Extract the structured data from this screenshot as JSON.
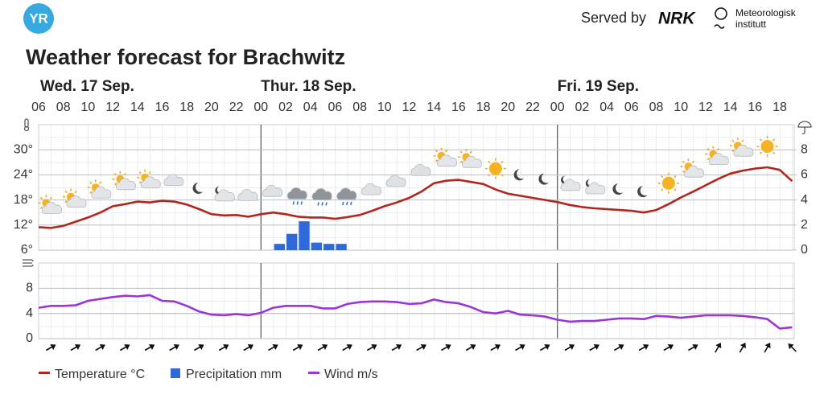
{
  "header": {
    "logo": "YR",
    "served_by": "Served by",
    "nrk": "NRK",
    "met_line1": "Meteorologisk",
    "met_line2": "institutt"
  },
  "chart_data": [
    {
      "type": "line",
      "title": "Weather forecast for Brachwitz",
      "day_labels": [
        "Wed. 17 Sep.",
        "Thur. 18 Sep.",
        "Fri. 19 Sep."
      ],
      "categories": [
        "06",
        null,
        "08",
        null,
        "10",
        null,
        "12",
        null,
        "14",
        null,
        "16",
        null,
        "18",
        null,
        "20",
        null,
        "22",
        null,
        "00",
        null,
        "02",
        null,
        "04",
        null,
        "06",
        null,
        "08",
        null,
        "10",
        null,
        "12",
        null,
        "14",
        null,
        "16",
        null,
        "18",
        null,
        "20",
        null,
        "22",
        null,
        "00",
        null,
        "02",
        null,
        "04",
        null,
        "06",
        null,
        "08",
        null,
        "10",
        null,
        "12",
        null,
        "14",
        null,
        "16",
        null,
        "18",
        null
      ],
      "series": [
        {
          "name": "Temperature °C",
          "color": "#b3261e",
          "values": [
            11.5,
            11.3,
            11.8,
            12.8,
            13.8,
            15.0,
            16.5,
            17.0,
            17.6,
            17.4,
            17.8,
            17.6,
            16.9,
            15.8,
            14.6,
            14.3,
            14.4,
            14.0,
            14.6,
            15.0,
            14.6,
            14.0,
            13.8,
            13.8,
            13.5,
            13.9,
            14.4,
            15.4,
            16.5,
            17.4,
            18.5,
            20.0,
            22.0,
            22.6,
            22.8,
            22.3,
            21.8,
            20.5,
            19.5,
            19.0,
            18.5,
            18.0,
            17.5,
            16.8,
            16.3,
            16.0,
            15.8,
            15.6,
            15.4,
            15.0,
            15.6,
            17.0,
            18.6,
            20.0,
            21.5,
            23.0,
            24.3,
            25.0,
            25.5,
            25.8,
            25.2,
            22.5
          ]
        },
        {
          "name": "Precipitation mm",
          "color": "#2f68d8",
          "type": "bar",
          "axis": "y2",
          "values": [
            0,
            0,
            0,
            0,
            0,
            0,
            0,
            0,
            0,
            0,
            0,
            0,
            0,
            0,
            0,
            0,
            0,
            0,
            0,
            0.5,
            1.3,
            2.3,
            0.6,
            0.5,
            0.5,
            0,
            0,
            0,
            0,
            0,
            0,
            0,
            0,
            0,
            0,
            0,
            0,
            0,
            0,
            0,
            0,
            0,
            0,
            0,
            0,
            0,
            0,
            0,
            0,
            0,
            0,
            0,
            0,
            0,
            0,
            0,
            0,
            0,
            0,
            0,
            0,
            0
          ]
        }
      ],
      "ylim": [
        6,
        36
      ],
      "yticks": [
        {
          "value": 6,
          "label": "6°"
        },
        {
          "value": 12,
          "label": "12°"
        },
        {
          "value": 18,
          "label": "18°"
        },
        {
          "value": 24,
          "label": "24°"
        },
        {
          "value": 30,
          "label": "30°"
        }
      ],
      "y2lim": [
        0,
        10
      ],
      "y2ticks": [
        0,
        2,
        4,
        6,
        8
      ],
      "grid": true
    },
    {
      "type": "line",
      "series": [
        {
          "name": "Wind m/s",
          "color": "#9b35d6",
          "values": [
            4.9,
            5.2,
            5.2,
            5.3,
            6.0,
            6.3,
            6.6,
            6.8,
            6.7,
            6.9,
            6.0,
            5.9,
            5.2,
            4.3,
            3.8,
            3.7,
            3.9,
            3.7,
            4.1,
            4.9,
            5.2,
            5.2,
            5.2,
            4.8,
            4.8,
            5.5,
            5.8,
            5.9,
            5.9,
            5.8,
            5.5,
            5.6,
            6.2,
            5.8,
            5.6,
            5.0,
            4.2,
            4.0,
            4.4,
            3.8,
            3.7,
            3.5,
            3.0,
            2.7,
            2.8,
            2.8,
            3.0,
            3.2,
            3.2,
            3.1,
            3.6,
            3.5,
            3.3,
            3.5,
            3.7,
            3.7,
            3.7,
            3.6,
            3.4,
            3.1,
            1.6,
            1.8
          ]
        }
      ],
      "ylim": [
        0,
        12
      ],
      "yticks": [
        0,
        4,
        8
      ],
      "grid": true
    }
  ]
}
